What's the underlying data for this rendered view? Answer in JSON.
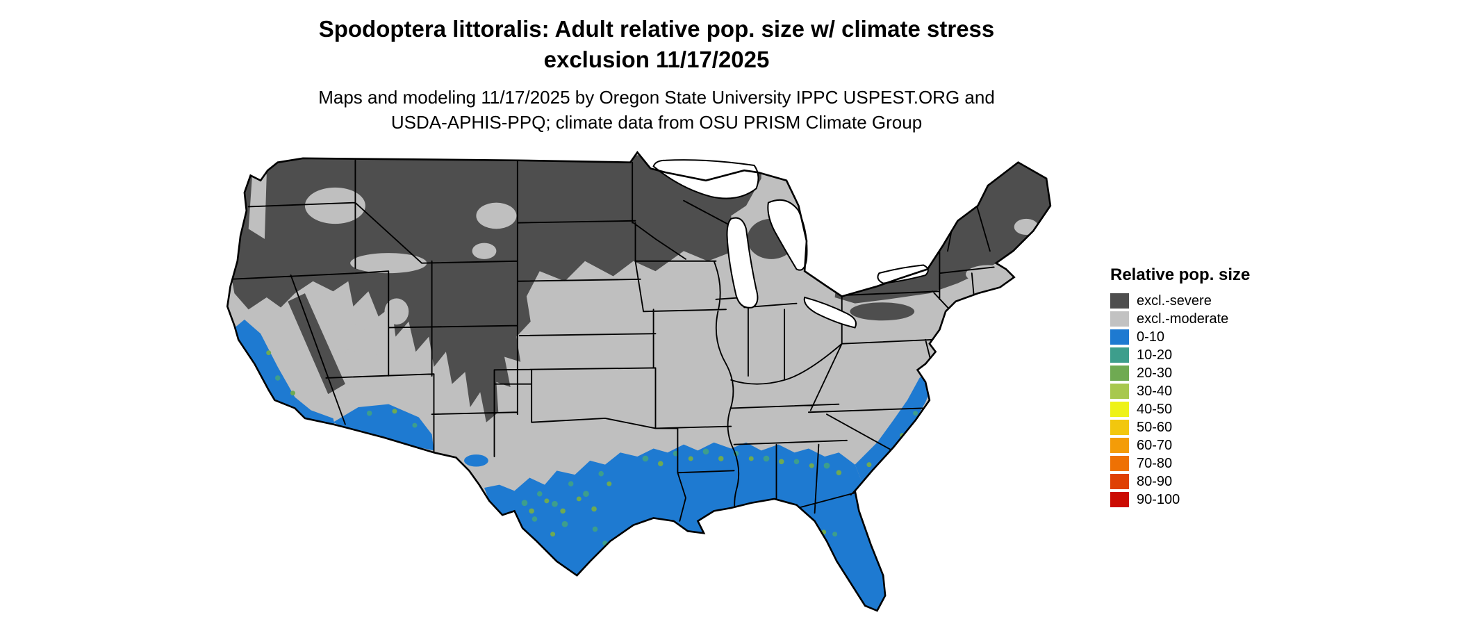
{
  "title": {
    "line1": "Spodoptera littoralis: Adult relative pop. size w/ climate stress",
    "line2": "exclusion 11/17/2025"
  },
  "subtitle": {
    "line1": "Maps and modeling 11/17/2025 by Oregon State University IPPC USPEST.ORG and",
    "line2": "USDA-APHIS-PPQ; climate data from OSU PRISM Climate Group"
  },
  "legend": {
    "title": "Relative pop. size",
    "items": [
      {
        "label": "excl.-severe",
        "color": "#4e4e4e"
      },
      {
        "label": "excl.-moderate",
        "color": "#c2c2c2"
      },
      {
        "label": "0-10",
        "color": "#1e7ad1"
      },
      {
        "label": "10-20",
        "color": "#3d9e8c"
      },
      {
        "label": "20-30",
        "color": "#6faa52"
      },
      {
        "label": "30-40",
        "color": "#a8c84e"
      },
      {
        "label": "40-50",
        "color": "#eef218"
      },
      {
        "label": "50-60",
        "color": "#f2c70e"
      },
      {
        "label": "60-70",
        "color": "#f49c08"
      },
      {
        "label": "70-80",
        "color": "#ee7104"
      },
      {
        "label": "80-90",
        "color": "#df4004"
      },
      {
        "label": "90-100",
        "color": "#cb0b02"
      }
    ]
  },
  "map": {
    "region": "Contiguous United States",
    "date_shown": "11/17/2025",
    "colors": {
      "severe": "#4e4e4e",
      "moderate": "#bfbfbf",
      "blue": "#1e7ad1",
      "teal": "#3d9e8c",
      "green": "#6faa52",
      "water": "#ffffff",
      "border": "#000000"
    }
  }
}
